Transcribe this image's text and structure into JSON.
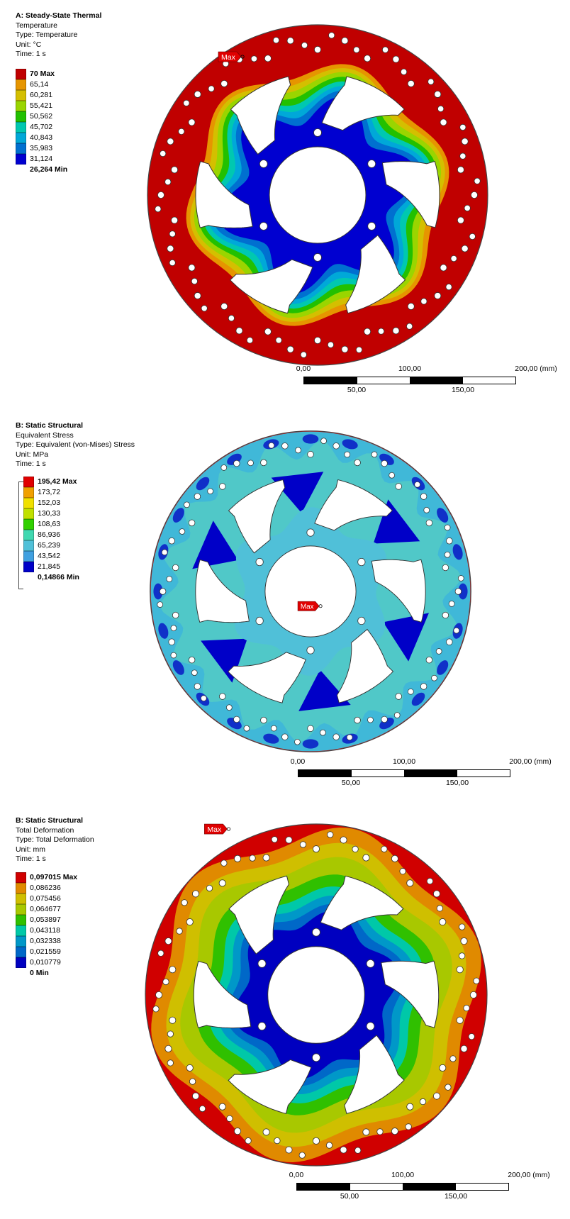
{
  "panels": [
    {
      "header": {
        "title": "A: Steady-State Thermal",
        "result": "Temperature",
        "type": "Type: Temperature",
        "unit": "Unit: °C",
        "time": "Time: 1 s"
      },
      "legend": {
        "values": [
          "70 Max",
          "65,14",
          "60,281",
          "55,421",
          "50,562",
          "45,702",
          "40,843",
          "35,983",
          "31,124",
          "26,264 Min"
        ],
        "colors": [
          "#c00000",
          "#e69500",
          "#d4bf00",
          "#9ad500",
          "#22c000",
          "#00c8b0",
          "#00a8d8",
          "#0070d0",
          "#0000d0"
        ]
      },
      "marker": "Max",
      "scale": {
        "labels_top": [
          "0,00",
          "100,00",
          "200,00 (mm)"
        ],
        "labels_bottom": [
          "50,00",
          "150,00"
        ]
      }
    },
    {
      "header": {
        "title": "B: Static Structural",
        "result": "Equivalent Stress",
        "type": "Type: Equivalent (von-Mises) Stress",
        "unit": "Unit: MPa",
        "time": "Time: 1 s"
      },
      "legend": {
        "values": [
          "195,42 Max",
          "173,72",
          "152,03",
          "130,33",
          "108,63",
          "86,936",
          "65,239",
          "43,542",
          "21,845",
          "0,14866 Min"
        ],
        "colors": [
          "#e00000",
          "#f0a000",
          "#f0e000",
          "#c0e000",
          "#30d000",
          "#40d8b0",
          "#50c0d8",
          "#40a0e0",
          "#0000c8"
        ]
      },
      "marker": "Max",
      "scale": {
        "labels_top": [
          "0,00",
          "100,00",
          "200,00 (mm)"
        ],
        "labels_bottom": [
          "50,00",
          "150,00"
        ]
      }
    },
    {
      "header": {
        "title": "B: Static Structural",
        "result": "Total Deformation",
        "type": "Type: Total Deformation",
        "unit": "Unit: mm",
        "time": "Time: 1 s"
      },
      "legend": {
        "values": [
          "0,097015 Max",
          "0,086236",
          "0,075456",
          "0,064677",
          "0,053897",
          "0,043118",
          "0,032338",
          "0,021559",
          "0,010779",
          "0 Min"
        ],
        "colors": [
          "#d00000",
          "#e08a00",
          "#cfbf00",
          "#a8c800",
          "#30c000",
          "#00c8a8",
          "#0098c8",
          "#0068c8",
          "#0000c0"
        ]
      },
      "marker": "Max",
      "scale": {
        "labels_top": [
          "0,00",
          "100,00",
          "200,00 (mm)"
        ],
        "labels_bottom": [
          "50,00",
          "150,00"
        ]
      }
    }
  ]
}
